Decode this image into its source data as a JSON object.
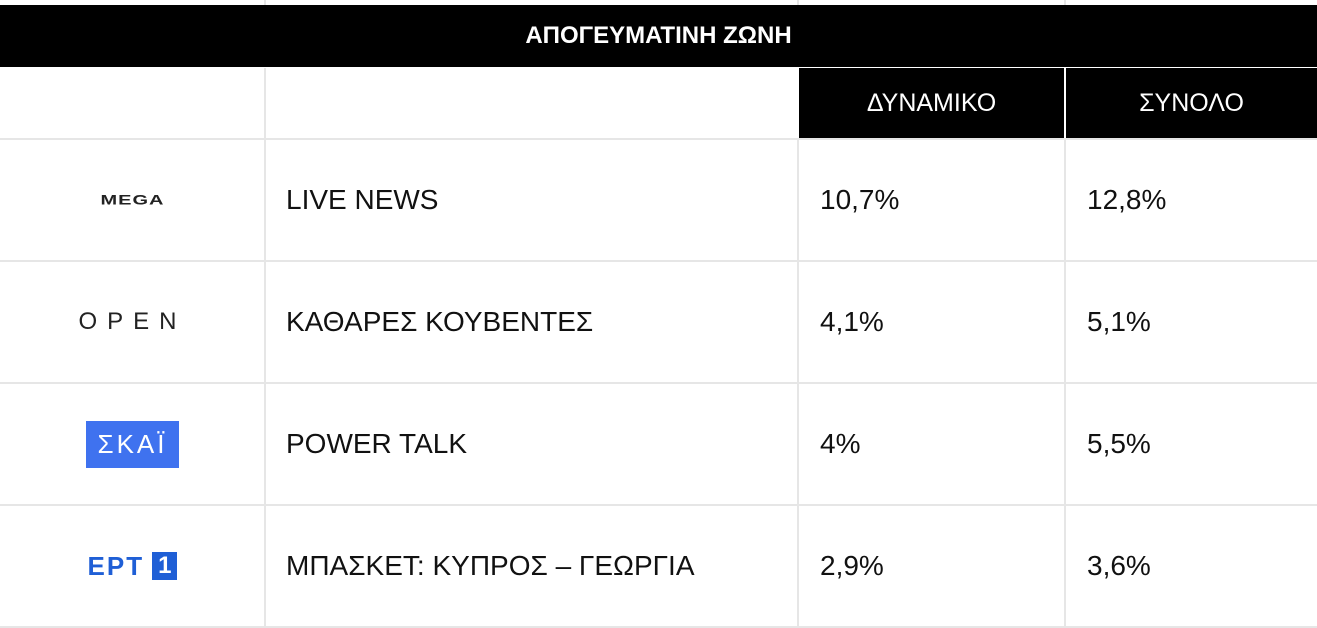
{
  "title": "ΑΠΟΓΕΥΜΑΤΙΝΗ ΖΩΝΗ",
  "table": {
    "header": [
      "ΔΥΝΑΜΙΚΟ",
      "ΣΥΝΟΛΟ"
    ],
    "rows": [
      {
        "logo": "MEGA",
        "show": "LIVE NEWS",
        "cells": [
          "10,7%",
          "12,8%"
        ]
      },
      {
        "logo": "OPEN",
        "show": "ΚΑΘΑΡΕΣ ΚΟΥΒΕΝΤΕΣ",
        "cells": [
          "4,1%",
          "5,1%"
        ]
      },
      {
        "logo": "ΣΚΑΪ",
        "show": "POWER TALK",
        "cells": [
          "4%",
          "5,5%"
        ]
      },
      {
        "logo": "ΕΡΤ",
        "logo_badge": "1",
        "show": "ΜΠΑΣΚΕΤ: ΚΥΠΡΟΣ – ΓΕΩΡΓΙΑ",
        "cells": [
          "2,9%",
          "3,6%"
        ]
      }
    ]
  }
}
